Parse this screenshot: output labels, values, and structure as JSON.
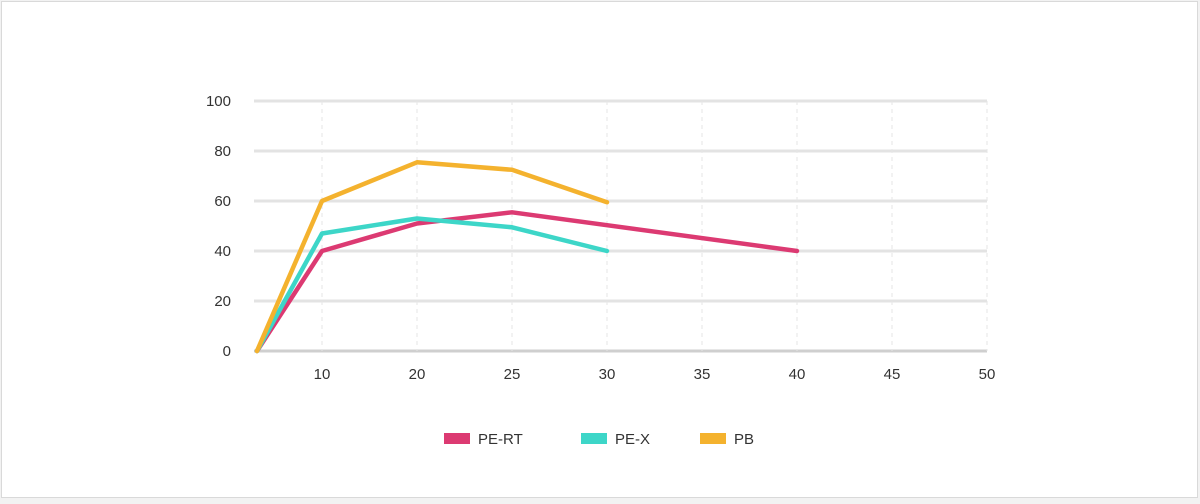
{
  "chart_data": {
    "type": "line",
    "title": "",
    "xlabel": "",
    "ylabel": "",
    "x_ticks": [
      "10",
      "20",
      "25",
      "30",
      "35",
      "40",
      "45",
      "50"
    ],
    "y_ticks": [
      "0",
      "20",
      "40",
      "60",
      "80",
      "100"
    ],
    "ylim": [
      0,
      100
    ],
    "legend_position": "bottom-center",
    "grid": true,
    "series": [
      {
        "name": "PE-RT",
        "color": "#dc3a72",
        "points": [
          {
            "x": 0,
            "y": 0
          },
          {
            "x": 10,
            "y": 40
          },
          {
            "x": 20,
            "y": 51
          },
          {
            "x": 25,
            "y": 55.5
          },
          {
            "x": 40,
            "y": 40
          }
        ]
      },
      {
        "name": "PE-X",
        "color": "#3dd6c8",
        "points": [
          {
            "x": 0,
            "y": 0
          },
          {
            "x": 10,
            "y": 47
          },
          {
            "x": 20,
            "y": 53
          },
          {
            "x": 25,
            "y": 49.5
          },
          {
            "x": 30,
            "y": 40
          }
        ]
      },
      {
        "name": "PB",
        "color": "#f4b22e",
        "points": [
          {
            "x": 0,
            "y": 0
          },
          {
            "x": 10,
            "y": 60
          },
          {
            "x": 20,
            "y": 75.5
          },
          {
            "x": 25,
            "y": 72.5
          },
          {
            "x": 30,
            "y": 59.5
          }
        ]
      }
    ]
  }
}
